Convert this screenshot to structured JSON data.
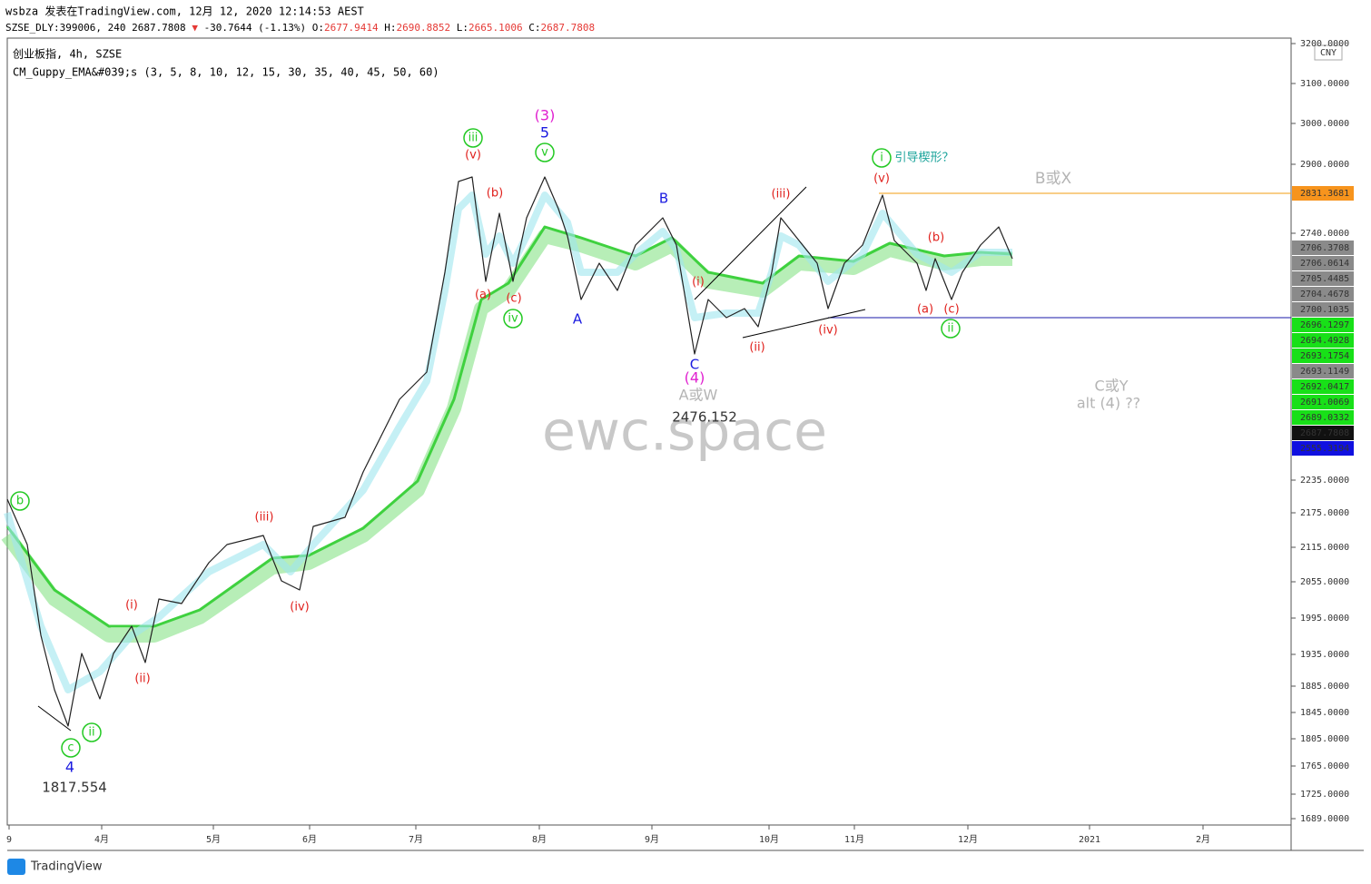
{
  "header": {
    "author_line": "wsbza 发表在TradingView.com, 12月 12, 2020 12:14:53 AEST",
    "symbol": "SZSE_DLY:399006, 240 2687.7808",
    "change_arrow": "▼",
    "change": "-30.7644 (-1.13%)",
    "ohlc": [
      {
        "key": "O:",
        "value": "2677.9414"
      },
      {
        "key": "H:",
        "value": "2690.8852"
      },
      {
        "key": "L:",
        "value": "2665.1006"
      },
      {
        "key": "C:",
        "value": "2687.7808"
      }
    ]
  },
  "legend": [
    "创业板指, 4h, SZSE",
    "CM_Guppy_EMA&#039;s (3, 5, 8, 10, 12, 15, 30, 35, 40, 45, 50, 60)"
  ],
  "currency": "CNY",
  "price_axis": [
    "3200.0000",
    "3100.0000",
    "3000.0000",
    "2900.0000",
    "2740.0000",
    "2235.0000",
    "2175.0000",
    "2115.0000",
    "2055.0000",
    "1995.0000",
    "1935.0000",
    "1885.0000",
    "1845.0000",
    "1805.0000",
    "1765.0000",
    "1725.0000",
    "1689.0000"
  ],
  "price_tags": [
    "2831.3681",
    "2706.3708",
    "2706.0614",
    "2705.4485",
    "2704.4678",
    "2700.1035",
    "2696.1297",
    "2694.4928",
    "2693.1754",
    "2693.1149",
    "2692.0417",
    "2691.0069",
    "2689.0332",
    "2687.7808",
    "2555.3194"
  ],
  "time_axis": [
    "9",
    "4月",
    "5月",
    "6月",
    "7月",
    "8月",
    "9月",
    "10月",
    "11月",
    "12月",
    "2021",
    "2月"
  ],
  "annotations": [
    "b",
    "c",
    "ii",
    "iii",
    "v",
    "iv",
    "i",
    "ii",
    "(v)",
    "(b)",
    "(a)",
    "(c)",
    "(i)",
    "(ii)",
    "(iii)",
    "(iv)",
    "(i)",
    "(ii)",
    "(iii)",
    "(iv)",
    "(v)",
    "(b)",
    "(a)",
    "(c)",
    "(3)",
    "(4)",
    "5",
    "4",
    "B",
    "A",
    "C",
    "A或W",
    "B或X",
    "C或Y",
    "alt (4) ??",
    "2476.152",
    "1817.554",
    "引导楔形？"
  ],
  "watermark": "ewc.space",
  "logo": "TradingView"
}
